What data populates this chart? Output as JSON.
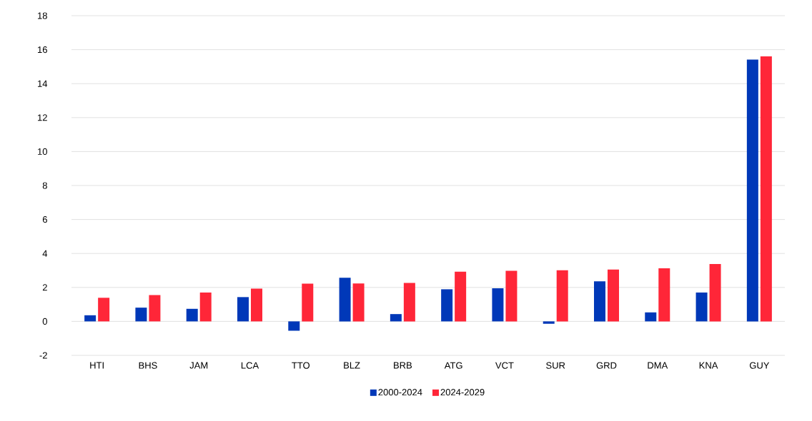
{
  "chart_data": {
    "type": "bar",
    "categories": [
      "HTI",
      "BHS",
      "JAM",
      "LCA",
      "TTO",
      "BLZ",
      "BRB",
      "ATG",
      "VCT",
      "SUR",
      "GRD",
      "DMA",
      "KNA",
      "GUY"
    ],
    "series": [
      {
        "name": "2000-2024",
        "color": "#0038b8",
        "values": [
          0.36,
          0.81,
          0.74,
          1.43,
          -0.55,
          2.57,
          0.43,
          1.89,
          1.95,
          -0.14,
          2.36,
          0.53,
          1.7,
          15.42
        ]
      },
      {
        "name": "2024-2029",
        "color": "#ff2638",
        "values": [
          1.39,
          1.55,
          1.7,
          1.93,
          2.22,
          2.23,
          2.26,
          2.93,
          2.98,
          3.01,
          3.05,
          3.13,
          3.38,
          15.6
        ]
      }
    ],
    "ylim": [
      -2,
      18
    ],
    "yticks": [
      -2,
      0,
      2,
      4,
      6,
      8,
      10,
      12,
      14,
      16,
      18
    ],
    "grid": "y",
    "legend": "bottom"
  }
}
